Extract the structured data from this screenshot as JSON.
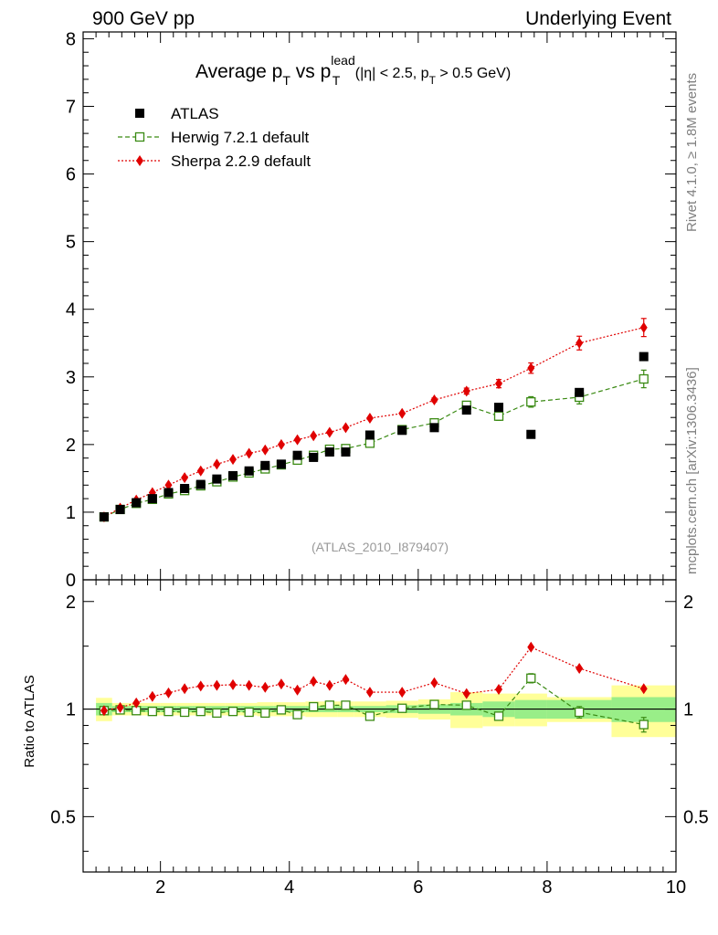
{
  "header": {
    "left": "900 GeV pp",
    "right": "Underlying Event"
  },
  "side_labels": {
    "rivet": "Rivet 4.1.0, ≥ 1.8M events",
    "mcplots": "mcplots.cern.ch [arXiv:1306.3436]"
  },
  "chart_data": {
    "type": "scatter",
    "title": {
      "main": "Average p",
      "sub1": "T",
      "mid": " vs p",
      "sup": "lead",
      "sub2": "T",
      "cuts_a": " (|η| < 2.5, p",
      "cuts_sub": "T",
      "cuts_b": " > 0.5 GeV)"
    },
    "analysis_id": "(ATLAS_2010_I879407)",
    "xlim": [
      0.8,
      10.0
    ],
    "ylim_main": [
      0,
      8.1
    ],
    "ylim_ratio": [
      0.35,
      2.3
    ],
    "xticks": [
      2,
      4,
      6,
      8,
      10
    ],
    "yticks_main": [
      0,
      1,
      2,
      3,
      4,
      5,
      6,
      7,
      8
    ],
    "yticks_ratio": [
      0.5,
      1,
      2
    ],
    "ratio_ylabel": "Ratio to ATLAS",
    "legend_position": "top-left",
    "series": [
      {
        "name": "ATLAS",
        "color": "#000000",
        "marker": "square-filled",
        "x": [
          1.125,
          1.375,
          1.625,
          1.875,
          2.125,
          2.375,
          2.625,
          2.875,
          3.125,
          3.375,
          3.625,
          3.875,
          4.125,
          4.375,
          4.625,
          4.875,
          5.25,
          5.75,
          6.25,
          6.75,
          7.25,
          7.75,
          8.5,
          9.5
        ],
        "values": [
          0.93,
          1.04,
          1.14,
          1.2,
          1.29,
          1.35,
          1.41,
          1.49,
          1.54,
          1.61,
          1.69,
          1.71,
          1.84,
          1.81,
          1.89,
          1.89,
          2.14,
          2.21,
          2.25,
          2.51,
          2.55,
          2.15,
          2.77,
          3.3
        ]
      },
      {
        "name": "Herwig 7.2.1 default",
        "color": "#3a8a13",
        "marker": "square-open",
        "linestyle": "dashed",
        "x": [
          1.125,
          1.375,
          1.625,
          1.875,
          2.125,
          2.375,
          2.625,
          2.875,
          3.125,
          3.375,
          3.625,
          3.875,
          4.125,
          4.375,
          4.625,
          4.875,
          5.25,
          5.75,
          6.25,
          6.75,
          7.25,
          7.75,
          8.5,
          9.5
        ],
        "values": [
          0.93,
          1.04,
          1.13,
          1.19,
          1.27,
          1.32,
          1.39,
          1.45,
          1.52,
          1.58,
          1.64,
          1.7,
          1.77,
          1.84,
          1.93,
          1.94,
          2.02,
          2.22,
          2.32,
          2.58,
          2.42,
          2.63,
          2.7,
          2.97
        ]
      },
      {
        "name": "Sherpa 2.2.9 default",
        "color": "#e00000",
        "marker": "diamond-filled",
        "linestyle": "dotted",
        "x": [
          1.125,
          1.375,
          1.625,
          1.875,
          2.125,
          2.375,
          2.625,
          2.875,
          3.125,
          3.375,
          3.625,
          3.875,
          4.125,
          4.375,
          4.625,
          4.875,
          5.25,
          5.75,
          6.25,
          6.75,
          7.25,
          7.75,
          8.5,
          9.5
        ],
        "values": [
          0.93,
          1.06,
          1.18,
          1.29,
          1.4,
          1.51,
          1.61,
          1.71,
          1.78,
          1.87,
          1.92,
          2.0,
          2.07,
          2.13,
          2.18,
          2.25,
          2.39,
          2.46,
          2.66,
          2.79,
          2.9,
          3.13,
          3.5,
          3.73
        ]
      }
    ],
    "ratio": {
      "herwig": [
        0.99,
        0.995,
        0.99,
        0.985,
        0.985,
        0.98,
        0.985,
        0.975,
        0.985,
        0.98,
        0.975,
        0.995,
        0.965,
        1.015,
        1.025,
        1.025,
        0.955,
        1.005,
        1.03,
        1.025,
        0.955,
        1.22,
        0.98,
        0.905
      ],
      "sherpa": [
        0.99,
        1.01,
        1.04,
        1.085,
        1.11,
        1.14,
        1.16,
        1.165,
        1.17,
        1.165,
        1.15,
        1.175,
        1.13,
        1.195,
        1.165,
        1.21,
        1.115,
        1.115,
        1.185,
        1.105,
        1.135,
        1.49,
        1.3,
        1.14
      ]
    },
    "ratio_bands": {
      "edges": [
        1.0,
        1.25,
        1.5,
        1.75,
        2.0,
        2.25,
        2.5,
        2.75,
        3.0,
        3.25,
        3.5,
        3.75,
        4.0,
        4.25,
        4.5,
        4.75,
        5.0,
        5.5,
        6.0,
        6.5,
        7.0,
        7.5,
        8.0,
        9.0,
        10.0
      ],
      "stat": [
        0.04,
        0.02,
        0.02,
        0.02,
        0.02,
        0.02,
        0.02,
        0.02,
        0.02,
        0.02,
        0.02,
        0.02,
        0.02,
        0.02,
        0.02,
        0.02,
        0.02,
        0.025,
        0.03,
        0.04,
        0.05,
        0.06,
        0.06,
        0.08
      ],
      "total": [
        0.075,
        0.04,
        0.04,
        0.04,
        0.04,
        0.04,
        0.04,
        0.04,
        0.04,
        0.04,
        0.045,
        0.045,
        0.045,
        0.05,
        0.05,
        0.05,
        0.05,
        0.055,
        0.065,
        0.115,
        0.105,
        0.105,
        0.08,
        0.165
      ]
    }
  }
}
